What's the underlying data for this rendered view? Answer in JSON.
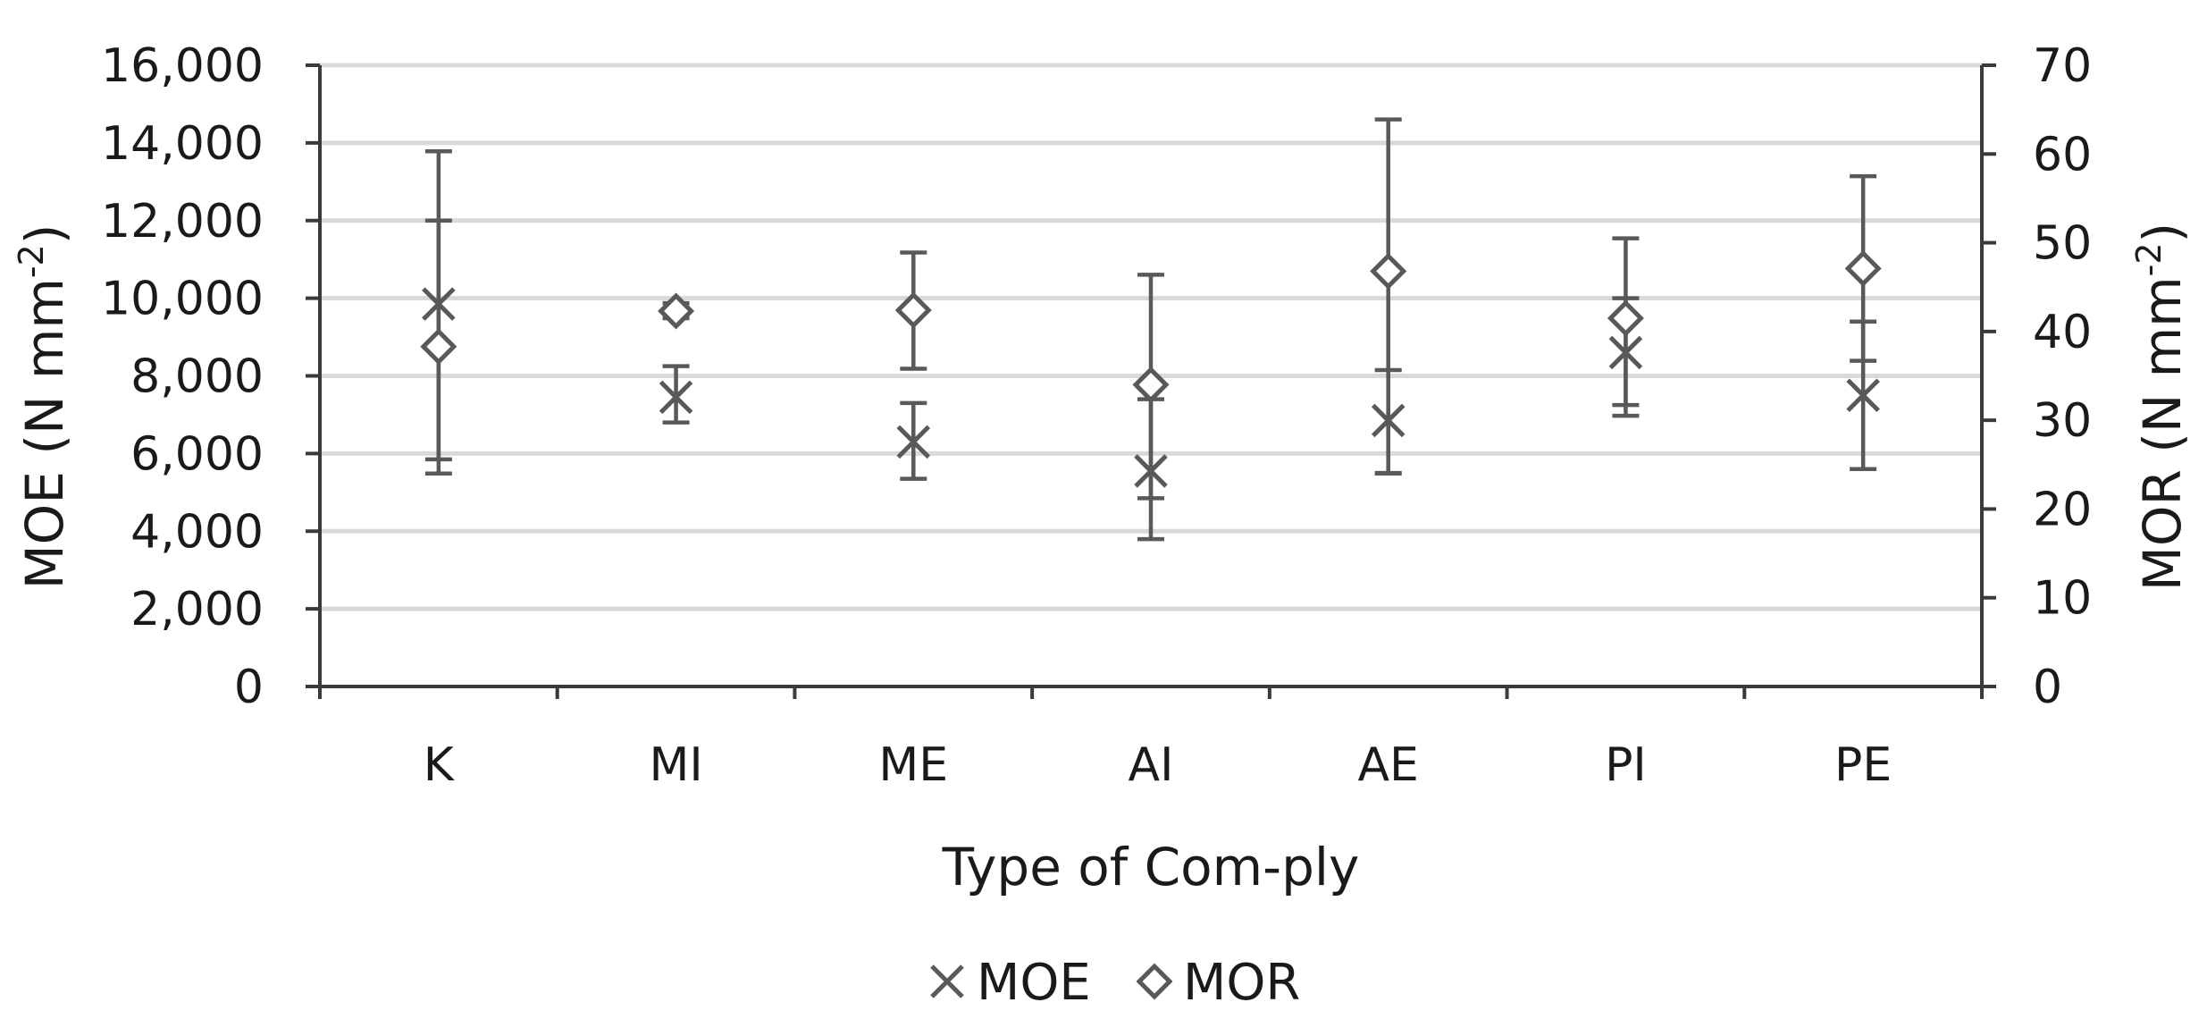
{
  "chart_data": {
    "type": "scatter",
    "categories": [
      "K",
      "MI",
      "ME",
      "AI",
      "AE",
      "PI",
      "PE"
    ],
    "xlabel": "Type of Com-ply",
    "ylabel_left": {
      "main": "MOE (N mm",
      "sup": "-2",
      "end": ")"
    },
    "ylabel_right": {
      "main": "MOR (N mm",
      "sup": "-2",
      "end": ")"
    },
    "ylim_left": [
      0,
      16000
    ],
    "ylim_right": [
      0,
      70
    ],
    "yticks_left": [
      "0",
      "2,000",
      "4,000",
      "6,000",
      "8,000",
      "10,000",
      "12,000",
      "14,000",
      "16,000"
    ],
    "yticks_right": [
      "0",
      "10",
      "20",
      "30",
      "40",
      "50",
      "60",
      "70"
    ],
    "grid": true,
    "legend_position": "bottom",
    "series": [
      {
        "name": "MOE",
        "axis": "left",
        "marker": "x",
        "values": [
          9850,
          7450,
          6300,
          5550,
          6850,
          8600,
          7500
        ],
        "error_low": [
          5850,
          6800,
          5350,
          4850,
          5500,
          7250,
          5600
        ],
        "error_high": [
          12000,
          8250,
          7300,
          7400,
          8150,
          10000,
          9400
        ]
      },
      {
        "name": "MOR",
        "axis": "right",
        "marker": "diamond",
        "values": [
          38.3,
          42.3,
          42.4,
          34.0,
          46.8,
          41.5,
          47.1
        ],
        "error_low": [
          24.0,
          41.5,
          35.8,
          16.6,
          24.0,
          30.5,
          36.7
        ],
        "error_high": [
          60.3,
          43.2,
          48.9,
          46.4,
          63.9,
          50.5,
          57.5
        ]
      }
    ],
    "colors": {
      "marker": "#595959",
      "grid": "#d9d9d9",
      "axis": "#3a3a3a"
    }
  }
}
